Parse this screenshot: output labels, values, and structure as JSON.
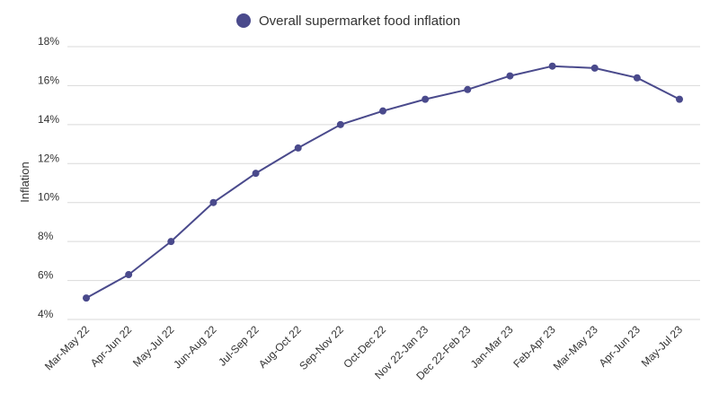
{
  "chart_data": {
    "type": "line",
    "title": "",
    "xlabel": "",
    "ylabel": "Inflation",
    "ylim": [
      4,
      18
    ],
    "y_ticks": [
      "4%",
      "6%",
      "8%",
      "10%",
      "12%",
      "14%",
      "16%",
      "18%"
    ],
    "y_tick_values": [
      4,
      6,
      8,
      10,
      12,
      14,
      16,
      18
    ],
    "categories": [
      "Mar-May 22",
      "Apr-Jun 22",
      "May-Jul 22",
      "Jun-Aug 22",
      "Jul-Sep 22",
      "Aug-Oct 22",
      "Sep-Nov 22",
      "Oct-Dec 22",
      "Nov 22-Jan 23",
      "Dec 22-Feb 23",
      "Jan-Mar 23",
      "Feb-Apr 23",
      "Mar-May 23",
      "Apr-Jun 23",
      "May-Jul 23"
    ],
    "series": [
      {
        "name": "Overall supermarket food inflation",
        "color": "#4a4a8c",
        "values": [
          5.1,
          6.3,
          8.0,
          10.0,
          11.5,
          12.8,
          14.0,
          14.7,
          15.3,
          15.8,
          16.5,
          17.0,
          16.9,
          16.4,
          15.3
        ]
      }
    ],
    "legend_position": "top-center",
    "grid": true
  }
}
